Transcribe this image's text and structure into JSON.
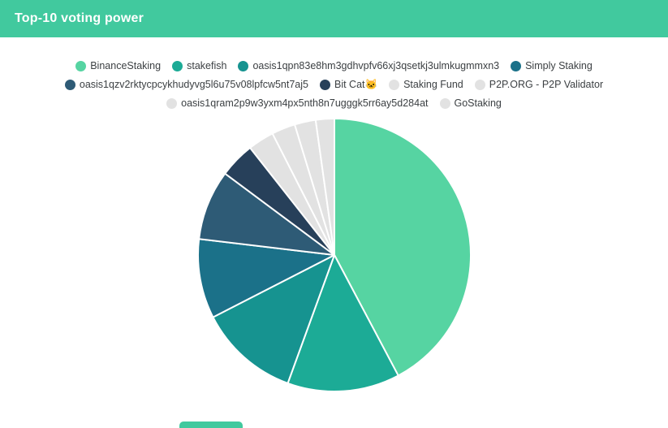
{
  "header": {
    "title": "Top-10 voting power"
  },
  "chart_data": {
    "type": "pie",
    "title": "Top-10 voting power",
    "unit": "percent_of_voting_power",
    "legend_position": "top",
    "legend_rows": [
      [
        0,
        1,
        2,
        3
      ],
      [
        4,
        5,
        6,
        7
      ],
      [
        8,
        9
      ]
    ],
    "series": [
      {
        "name": "BinanceStaking",
        "value": 42.2,
        "color": "#56d4a2"
      },
      {
        "name": "stakefish",
        "value": 13.3,
        "color": "#1cab96"
      },
      {
        "name": "oasis1qpn83e8hm3gdhvpfv66xj3qsetkj3ulmkugmmxn3",
        "value": 11.9,
        "color": "#169390"
      },
      {
        "name": "Simply Staking",
        "value": 9.4,
        "color": "#1b7189"
      },
      {
        "name": "oasis1qzv2rktycpcykhudyvg5l6u75v08lpfcw5nt7aj5",
        "value": 8.3,
        "color": "#2e5b76"
      },
      {
        "name": "Bit Cat🐱",
        "value": 4.2,
        "color": "#27405a"
      },
      {
        "name": "Staking Fund",
        "value": 3.1,
        "color": "#e2e2e2"
      },
      {
        "name": "P2P.ORG - P2P Validator",
        "value": 2.8,
        "color": "#e2e2e2"
      },
      {
        "name": "oasis1qram2p9w3yxm4px5nth8n7ugggk5rr6ay5d284at",
        "value": 2.5,
        "color": "#e2e2e2"
      },
      {
        "name": "GoStaking",
        "value": 2.2,
        "color": "#e2e2e2"
      }
    ]
  },
  "theme": {
    "header_bg": "#41c99e",
    "header_text": "#ffffff",
    "legend_text": "#3c4043",
    "slice_border": "#ffffff",
    "background": "#ffffff"
  }
}
